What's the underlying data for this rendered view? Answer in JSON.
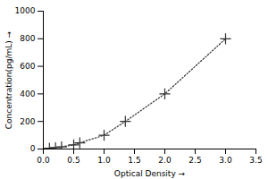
{
  "chart_data": {
    "type": "line",
    "xlabel": "Optical Density",
    "ylabel": "Concentration(pg/mL)",
    "x": [
      0.1,
      0.2,
      0.3,
      0.5,
      0.6,
      1.0,
      1.35,
      2.0,
      3.0
    ],
    "values": [
      6,
      10,
      16,
      30,
      45,
      100,
      200,
      400,
      800
    ],
    "color": "#333333",
    "marker": "plus",
    "line_style": "dotted",
    "xlim": [
      0,
      3.5
    ],
    "ylim": [
      0,
      1000
    ],
    "xticks": [
      {
        "value": 0,
        "label": "0.0"
      },
      0.5,
      {
        "value": 1,
        "label": "1.0"
      },
      1.5,
      {
        "value": 2,
        "label": "2.0"
      },
      2.5,
      {
        "value": 3,
        "label": "3.0"
      },
      3.5
    ],
    "yticks": [
      0,
      200,
      400,
      600,
      800,
      1000
    ],
    "grid": false
  }
}
